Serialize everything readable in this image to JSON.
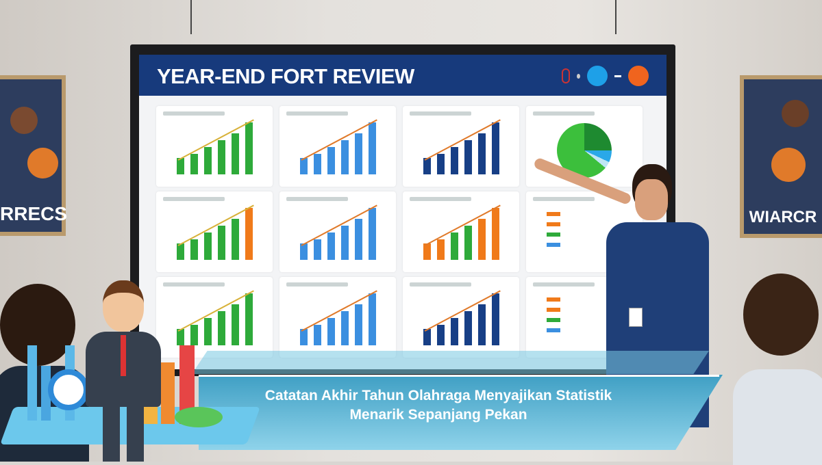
{
  "screen": {
    "title": "YEAR-END FORT REVIEW",
    "header_icons": [
      "badge-icon",
      "dot-icon",
      "circle-blue-icon",
      "arrow-icon",
      "circle-orange-icon"
    ]
  },
  "posters": {
    "left_text": "RRECS",
    "right_text": "WIARCR"
  },
  "caption": {
    "line1": "Catatan Akhir Tahun Olahraga Menyajikan Statistik",
    "line2": "Menarik Sepanjang Pekan"
  },
  "colors": {
    "header": "#173a7c",
    "banner": "#4aa8cc",
    "green": "#2eaa3a",
    "blue": "#3b8fe0",
    "navy": "#173f86",
    "orange": "#f07a1a"
  }
}
